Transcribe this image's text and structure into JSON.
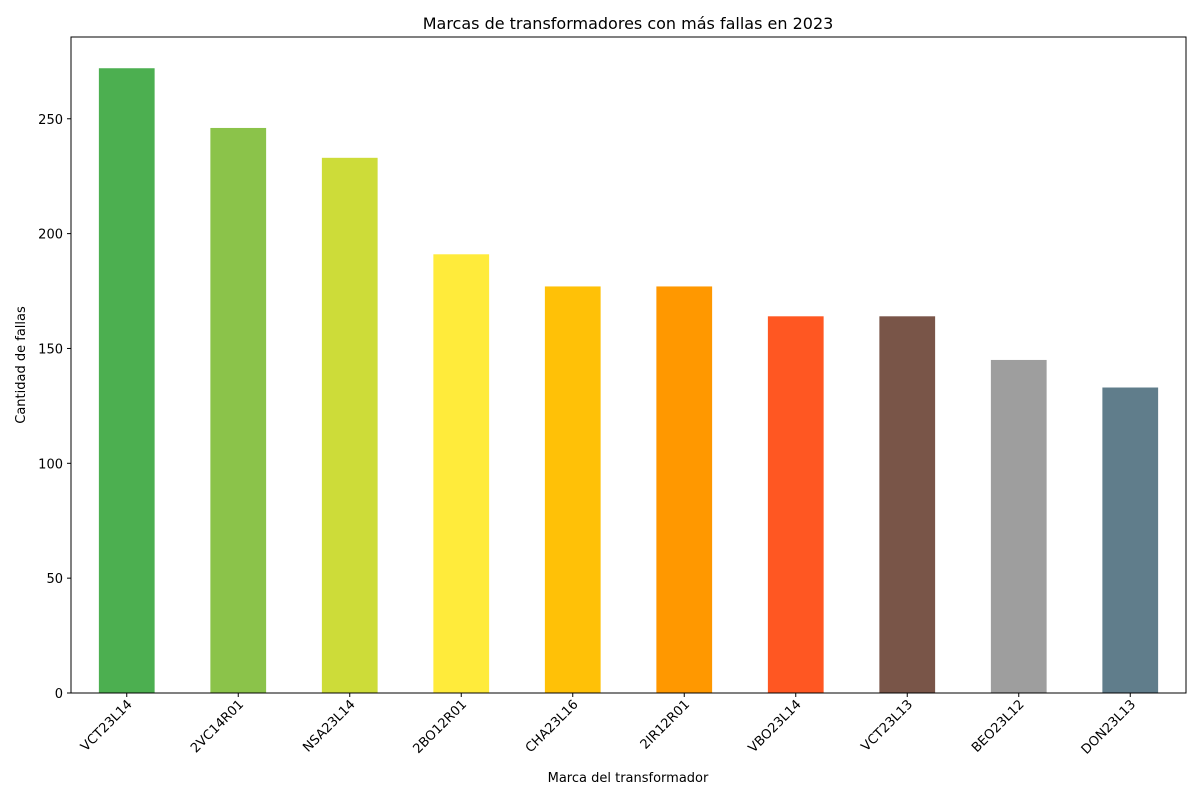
{
  "chart_data": {
    "type": "bar",
    "title": "Marcas de transformadores con más fallas en 2023",
    "xlabel": "Marca del transformador",
    "ylabel": "Cantidad de fallas",
    "categories": [
      "VCT23L14",
      "2VC14R01",
      "NSA23L14",
      "2BO12R01",
      "CHA23L16",
      "2IR12R01",
      "VBO23L14",
      "VCT23L13",
      "BEO23L12",
      "DON23L13"
    ],
    "values": [
      272,
      246,
      233,
      191,
      177,
      177,
      164,
      164,
      145,
      133
    ],
    "colors": [
      "#4caf50",
      "#8bc34a",
      "#cddc39",
      "#ffeb3b",
      "#ffc107",
      "#ff9800",
      "#ff5722",
      "#795548",
      "#9e9e9e",
      "#607d8b"
    ],
    "yticks": [
      0,
      50,
      100,
      150,
      200,
      250
    ],
    "ylim": [
      0,
      285.6
    ],
    "grid": false,
    "legend": "none"
  }
}
